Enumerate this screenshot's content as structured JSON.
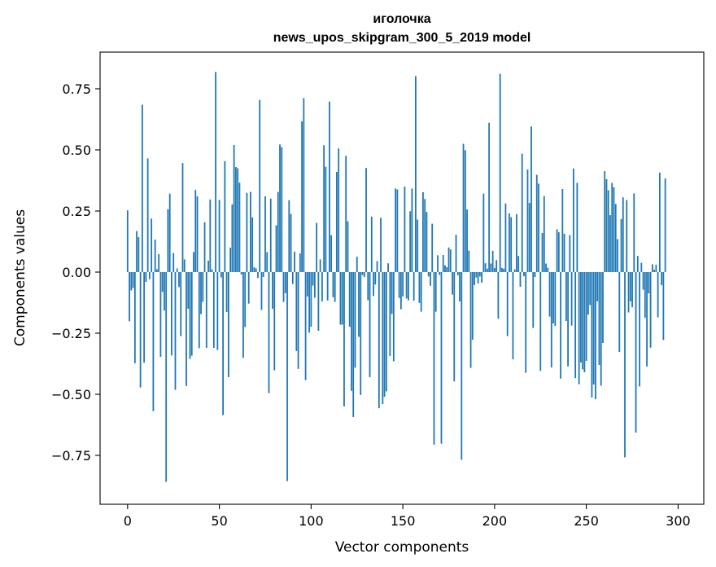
{
  "chart_data": {
    "type": "bar",
    "title": "иголочка",
    "subtitle": "news_upos_skipgram_300_5_2019 model",
    "xlabel": "Vector components",
    "ylabel": "Components values",
    "xlim": [
      -15,
      314
    ],
    "ylim": [
      -0.95,
      0.9
    ],
    "x_ticks": [
      0,
      50,
      100,
      150,
      200,
      250,
      300
    ],
    "x_tick_labels": [
      "0",
      "50",
      "100",
      "150",
      "200",
      "250",
      "300"
    ],
    "y_ticks": [
      0.75,
      0.5,
      0.25,
      0.0,
      -0.25,
      -0.5,
      -0.75
    ],
    "y_tick_labels": [
      "0.75",
      "0.50",
      "0.25",
      "0.00",
      "−0.25",
      "−0.50",
      "−0.75"
    ],
    "grid": false,
    "bar_color": "#1f77b4",
    "values": [
      0.253,
      -0.201,
      -0.075,
      -0.065,
      -0.373,
      0.168,
      0.143,
      -0.472,
      0.685,
      -0.371,
      -0.04,
      0.465,
      -0.029,
      0.219,
      -0.569,
      0.133,
      0.012,
      0.074,
      -0.347,
      -0.081,
      -0.158,
      -0.858,
      0.257,
      0.321,
      -0.341,
      0.078,
      -0.482,
      0.015,
      -0.061,
      -0.262,
      0.446,
      0.052,
      -0.466,
      -0.15,
      -0.355,
      -0.342,
      0.082,
      0.336,
      0.31,
      -0.311,
      -0.172,
      -0.122,
      0.204,
      -0.31,
      0.047,
      0.297,
      0.011,
      -0.31,
      0.819,
      -0.319,
      0.295,
      -0.022,
      -0.585,
      0.454,
      -0.163,
      -0.43,
      0.1,
      0.277,
      0.52,
      0.43,
      0.425,
      0.366,
      -0.01,
      -0.351,
      -0.225,
      0.324,
      -0.129,
      0.328,
      0.224,
      0.02,
      0.015,
      -0.024,
      0.705,
      -0.155,
      -0.02,
      0.31,
      0.082,
      -0.495,
      0.301,
      -0.15,
      -0.402,
      0.191,
      0.328,
      0.522,
      0.511,
      -0.122,
      -0.086,
      -0.855,
      0.294,
      0.238,
      -0.049,
      0.084,
      -0.323,
      -0.396,
      0.077,
      0.617,
      0.712,
      -0.442,
      -0.1,
      -0.248,
      -0.224,
      -0.055,
      -0.105,
      0.201,
      -0.24,
      0.052,
      -0.12,
      0.519,
      0.431,
      -0.116,
      0.698,
      0.151,
      -0.103,
      -0.122,
      0.41,
      0.506,
      -0.215,
      -0.215,
      -0.55,
      0.476,
      0.208,
      -0.224,
      -0.486,
      -0.593,
      -0.391,
      0.063,
      -0.265,
      -0.503,
      -0.012,
      -0.02,
      0.426,
      -0.115,
      -0.43,
      0.227,
      -0.098,
      -0.051,
      0.045,
      -0.557,
      0.222,
      -0.54,
      -0.51,
      -0.488,
      0.036,
      -0.343,
      -0.171,
      -0.365,
      0.342,
      0.338,
      -0.106,
      -0.152,
      -0.1,
      0.35,
      -0.108,
      -0.116,
      0.249,
      0.342,
      -0.117,
      0.802,
      0.215,
      -0.126,
      -0.162,
      0.327,
      0.299,
      0.246,
      -0.018,
      -0.056,
      0.198,
      -0.706,
      -0.162,
      0.069,
      -0.012,
      -0.702,
      0.07,
      0.028,
      0.02,
      0.101,
      0.093,
      -0.092,
      -0.447,
      0.153,
      -0.013,
      -0.12,
      -0.768,
      0.525,
      0.499,
      0.256,
      0.088,
      -0.392,
      -0.277,
      -0.053,
      -0.022,
      -0.046,
      -0.018,
      -0.043,
      0.321,
      0.036,
      0.014,
      0.611,
      0.035,
      0.087,
      0.017,
      0.049,
      -0.191,
      0.811,
      0.017,
      0.014,
      0.281,
      -0.262,
      0.24,
      0.225,
      -0.357,
      0.011,
      0.237,
      0.066,
      -0.06,
      0.485,
      -0.017,
      -0.412,
      0.42,
      0.283,
      0.596,
      -0.228,
      -0.02,
      0.398,
      0.362,
      -0.404,
      0.16,
      0.311,
      0.035,
      0.018,
      -0.182,
      -0.39,
      -0.21,
      -0.22,
      0.175,
      0.163,
      -0.436,
      0.34,
      0.157,
      -0.2,
      -0.386,
      0.151,
      -0.219,
      0.424,
      -0.434,
      0.365,
      -0.459,
      -0.37,
      -0.398,
      -0.41,
      -0.363,
      -0.174,
      -0.135,
      -0.513,
      -0.46,
      -0.52,
      -0.12,
      -0.38,
      -0.465,
      -0.29,
      0.413,
      0.38,
      0.335,
      0.233,
      0.365,
      0.347,
      0.279,
      0.135,
      -0.327,
      0.217,
      0.306,
      -0.758,
      0.295,
      -0.165,
      -0.12,
      -0.144,
      0.322,
      -0.657,
      0.066,
      -0.468,
      0.038,
      -0.072,
      -0.187,
      -0.386,
      -0.087,
      -0.309,
      0.032,
      0.01,
      0.03,
      -0.185,
      0.407,
      -0.053,
      -0.278,
      0.383
    ]
  }
}
